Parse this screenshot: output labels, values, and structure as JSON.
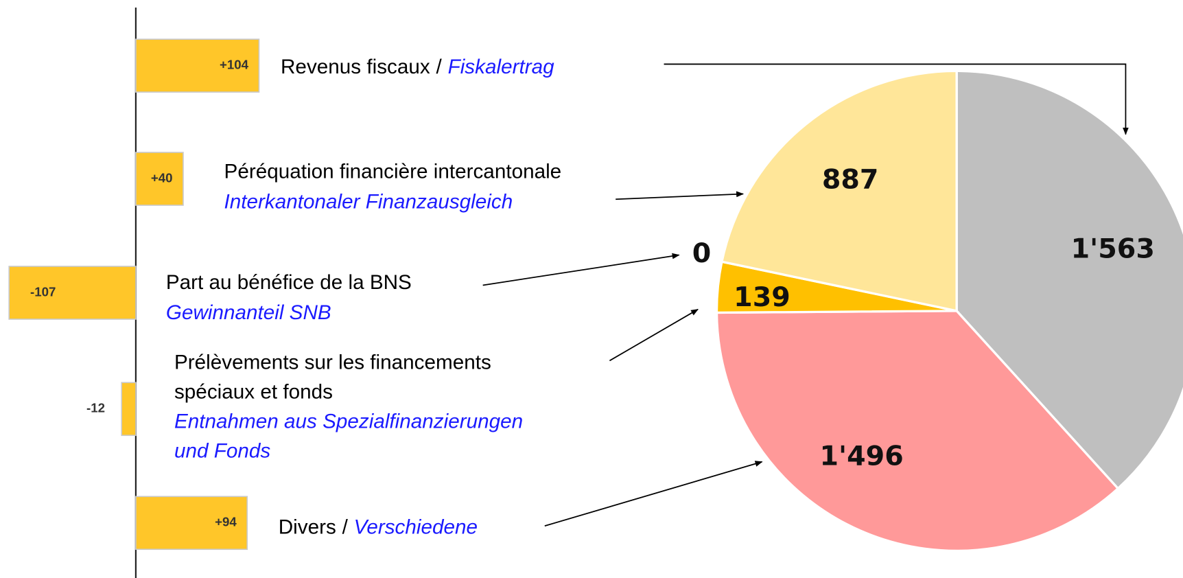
{
  "chart_data": [
    {
      "type": "hbar",
      "separator": "/",
      "categories": [
        {
          "fr": [
            "Revenus fiscaux"
          ],
          "de": [
            "Fiskalertrag"
          ]
        },
        {
          "fr": [
            "Péréquation financière intercantonale"
          ],
          "de": [
            "Interkantonaler Finanzausgleich"
          ]
        },
        {
          "fr": [
            "Part au bénéfice de la BNS"
          ],
          "de": [
            "Gewinnanteil SNB"
          ]
        },
        {
          "fr": [
            "Prélèvements sur les financements",
            "spéciaux et fonds"
          ],
          "de": [
            "Entnahmen aus Spezialfinanzierungen",
            "und Fonds"
          ]
        },
        {
          "fr": [
            "Divers"
          ],
          "de": [
            "Verschiedene"
          ]
        }
      ],
      "values": [
        104,
        40,
        -107,
        -12,
        94
      ],
      "value_labels": [
        "+104",
        "+40",
        "-107",
        "-12",
        "+94"
      ],
      "color": "#ffc629"
    },
    {
      "type": "pie",
      "values": [
        1563,
        1496,
        139,
        0,
        887
      ],
      "value_labels": [
        "1'563",
        "1'496",
        "139",
        "0",
        "887"
      ],
      "colors": [
        "#bfbfbf",
        "#ff9999",
        "#ffc000",
        "#ffc000",
        "#ffe699"
      ]
    }
  ]
}
